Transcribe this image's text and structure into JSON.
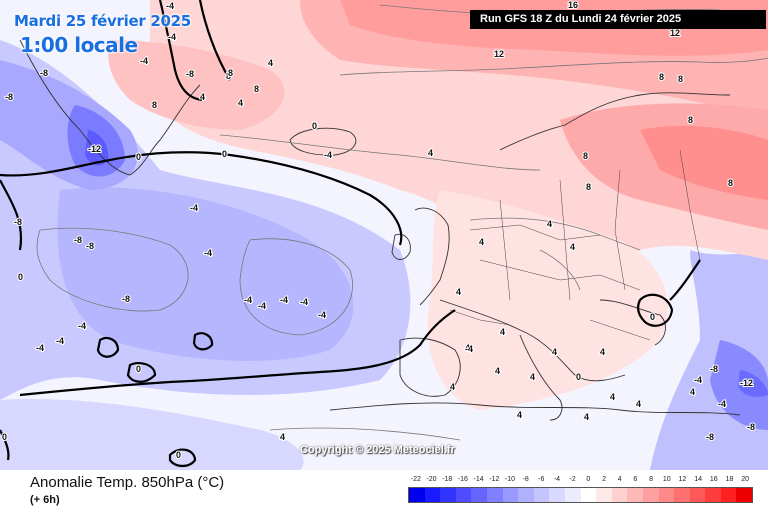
{
  "header": {
    "date": "Mardi 25 février 2025",
    "local_time": "1:00 locale",
    "run": "Run GFS 18 Z du Lundi 24 février 2025"
  },
  "copyright": "Copyright © 2025 Meteociel.fr",
  "footer": {
    "title": "Anomalie Temp. 850hPa (°C)",
    "subtitle": "(+ 6h)"
  },
  "legend": {
    "ticks": [
      "-22",
      "-20",
      "-18",
      "-16",
      "-14",
      "-12",
      "-10",
      "-8",
      "-6",
      "-4",
      "-2",
      "0",
      "2",
      "4",
      "6",
      "8",
      "10",
      "12",
      "14",
      "16",
      "18",
      "20"
    ],
    "colors": [
      "#0000ee",
      "#1a1aff",
      "#3333ff",
      "#4d4dff",
      "#6666ff",
      "#7f7fff",
      "#9999ff",
      "#b0b0ff",
      "#c4c4ff",
      "#d9d9ff",
      "#ececff",
      "#ffffff",
      "#ffe8e8",
      "#ffd0d0",
      "#ffb8b8",
      "#ffa0a0",
      "#ff8888",
      "#ff7070",
      "#ff5858",
      "#ff3c3c",
      "#ff2020",
      "#ee0000"
    ]
  },
  "contour_labels": [
    "16",
    "12",
    "12",
    "8",
    "8",
    "8",
    "8",
    "8",
    "8",
    "8",
    "4",
    "4",
    "4",
    "4",
    "4",
    "4",
    "4",
    "4",
    "4",
    "4",
    "4",
    "4",
    "4",
    "4",
    "4",
    "4",
    "4",
    "4",
    "4",
    "4",
    "4",
    "-4",
    "-4",
    "-4",
    "-4",
    "-4",
    "-4",
    "-4",
    "-4",
    "-4",
    "-4",
    "-4",
    "-4",
    "-4",
    "-4",
    "-4",
    "-4",
    "-8",
    "-8",
    "-8",
    "-8",
    "-8",
    "-8",
    "-8",
    "-8",
    "-8",
    "-12",
    "-12",
    "0",
    "0",
    "0",
    "0",
    "0",
    "0",
    "0",
    "0",
    "0",
    "-4",
    "-8",
    "8",
    "8",
    "8"
  ]
}
